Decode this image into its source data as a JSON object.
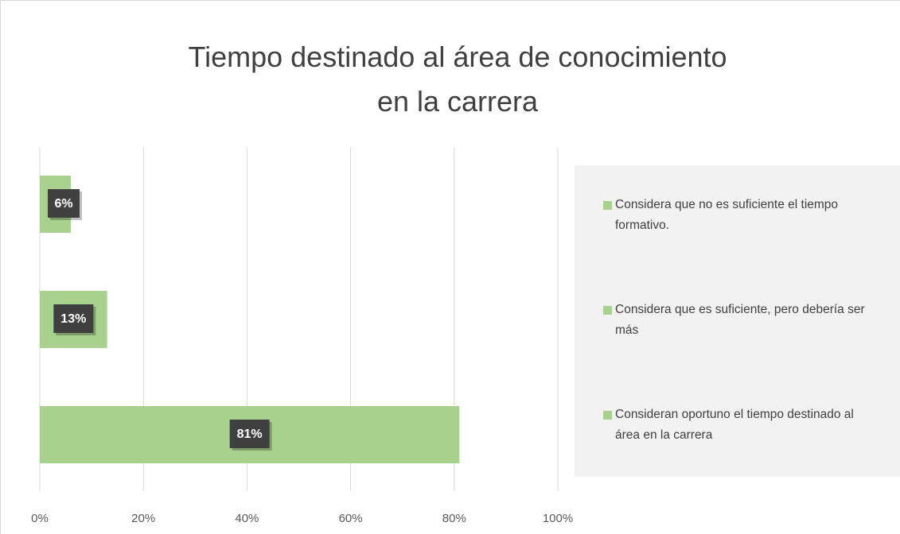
{
  "chart_data": {
    "type": "bar",
    "orientation": "horizontal",
    "title": "Tiempo destinado al área de conocimiento en la carrera",
    "categories": [
      "Considera que no es suficiente el tiempo formativo.",
      "Considera que es suficiente, pero debería ser más",
      "Consideran oportuno el tiempo destinado al área en la carrera"
    ],
    "values": [
      6,
      13,
      81
    ],
    "value_labels": [
      "6%",
      "13%",
      "81%"
    ],
    "color": "#a9d18e",
    "xlim": [
      0,
      100
    ],
    "xticks": [
      {
        "value": 0,
        "label": "0%"
      },
      {
        "value": 20,
        "label": "20%"
      },
      {
        "value": 40,
        "label": "40%"
      },
      {
        "value": 60,
        "label": "60%"
      },
      {
        "value": 80,
        "label": "80%"
      },
      {
        "value": 100,
        "label": "100%"
      }
    ],
    "grid": true,
    "legend": "right"
  }
}
